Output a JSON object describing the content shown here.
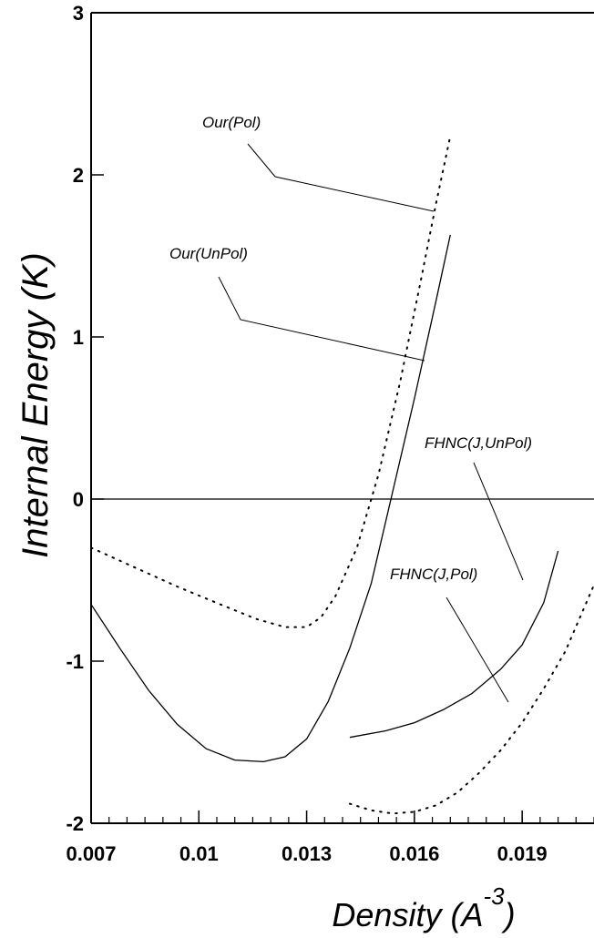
{
  "chart_data": {
    "type": "line",
    "title": "",
    "xlabel": "Density (A",
    "xlabel_exp": "-3",
    "xlabel_close": ")",
    "ylabel": "Internal Energy (K)",
    "xlim": [
      0.007,
      0.021
    ],
    "ylim": [
      -2,
      3
    ],
    "xticks": [
      0.007,
      0.01,
      0.013,
      0.016,
      0.019
    ],
    "xtick_labels": [
      "0.007",
      "0.01",
      "0.013",
      "0.016",
      "0.019"
    ],
    "yticks": [
      -2,
      -1,
      0,
      1,
      2,
      3
    ],
    "ytick_labels": [
      "-2",
      "-1",
      "0",
      "1",
      "2",
      "3"
    ],
    "grid": false,
    "zero_line": true,
    "series": [
      {
        "name": "Our(UnPol)",
        "style": "solid",
        "x": [
          0.007,
          0.0078,
          0.0086,
          0.0094,
          0.0102,
          0.011,
          0.0118,
          0.0124,
          0.013,
          0.0136,
          0.0142,
          0.0148,
          0.0154,
          0.016,
          0.0166,
          0.017
        ],
        "y": [
          -0.65,
          -0.92,
          -1.18,
          -1.39,
          -1.54,
          -1.61,
          -1.62,
          -1.59,
          -1.48,
          -1.25,
          -0.92,
          -0.52,
          0.05,
          0.62,
          1.22,
          1.63
        ]
      },
      {
        "name": "Our(Pol)",
        "style": "dotted",
        "x": [
          0.007,
          0.0082,
          0.0094,
          0.0106,
          0.0116,
          0.0124,
          0.013,
          0.0134,
          0.0138,
          0.0144,
          0.015,
          0.0156,
          0.0162,
          0.0166,
          0.017
        ],
        "y": [
          -0.3,
          -0.42,
          -0.54,
          -0.65,
          -0.74,
          -0.79,
          -0.79,
          -0.73,
          -0.6,
          -0.3,
          0.15,
          0.72,
          1.37,
          1.82,
          2.24
        ]
      },
      {
        "name": "FHNC(J,UnPol)",
        "style": "solid",
        "x": [
          0.0142,
          0.0152,
          0.016,
          0.0168,
          0.0176,
          0.0184,
          0.019,
          0.0196,
          0.02
        ],
        "y": [
          -1.47,
          -1.43,
          -1.38,
          -1.3,
          -1.2,
          -1.05,
          -0.9,
          -0.64,
          -0.32
        ]
      },
      {
        "name": "FHNC(J,Pol)",
        "style": "dotted",
        "x": [
          0.0142,
          0.0148,
          0.0154,
          0.016,
          0.0166,
          0.0172,
          0.0178,
          0.0184,
          0.019,
          0.0196,
          0.0202,
          0.021
        ],
        "y": [
          -1.88,
          -1.92,
          -1.94,
          -1.93,
          -1.89,
          -1.81,
          -1.69,
          -1.55,
          -1.38,
          -1.17,
          -0.94,
          -0.53
        ]
      }
    ],
    "annotations": [
      {
        "text": "Our(Pol)",
        "series": "Our(Pol)"
      },
      {
        "text": "Our(UnPol)",
        "series": "Our(UnPol)"
      },
      {
        "text": "FHNC(J,UnPol)",
        "series": "FHNC(J,UnPol)"
      },
      {
        "text": "FHNC(J,Pol)",
        "series": "FHNC(J,Pol)"
      }
    ]
  }
}
